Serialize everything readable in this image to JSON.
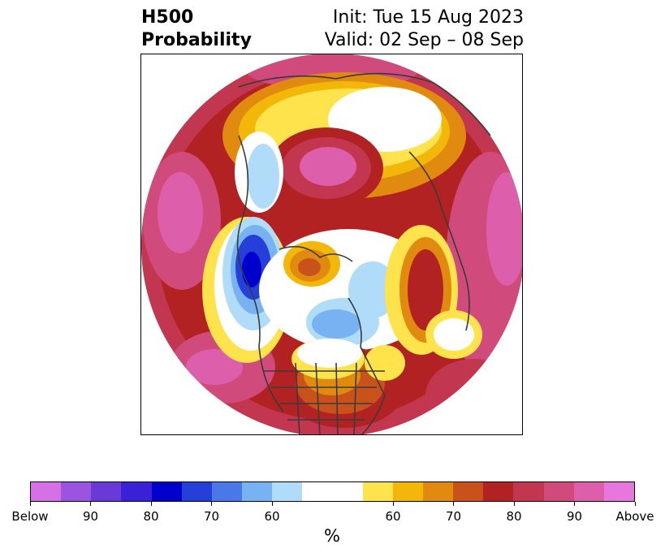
{
  "title": {
    "left_line1": "H500",
    "left_line2": "Probability",
    "right_line1": "Init: Tue 15 Aug 2023",
    "right_line2": "Valid: 02 Sep – 08 Sep"
  },
  "map": {
    "projection": "north-polar-stereographic",
    "field": "500 hPa height probability anomaly"
  },
  "colorbar": {
    "units": "%",
    "colors": [
      "#d670e6",
      "#9b54e0",
      "#6a3ad8",
      "#3a20d6",
      "#0000cc",
      "#2540d9",
      "#4b78e8",
      "#78b2f2",
      "#b0dcf9",
      "#ffffff",
      "#ffe34d",
      "#f3b70a",
      "#e08a10",
      "#c9521b",
      "#b32222",
      "#c23650",
      "#d04a7c",
      "#dd5fab",
      "#e777dc"
    ],
    "labels": [
      "Below",
      "90",
      "80",
      "70",
      "60",
      "60",
      "70",
      "80",
      "90",
      "Above"
    ]
  }
}
